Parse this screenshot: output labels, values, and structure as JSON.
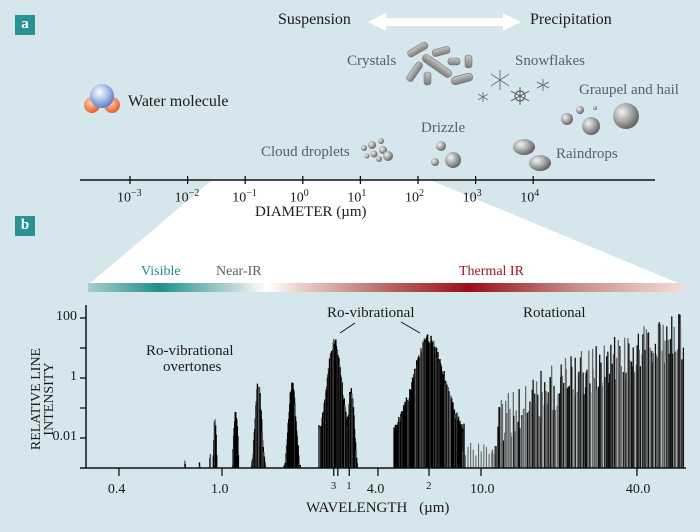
{
  "panel_a": {
    "label": "a",
    "suspension_label": "Suspension",
    "precipitation_label": "Precipitation",
    "particles": [
      {
        "name": "water-molecule",
        "label": "Water molecule"
      },
      {
        "name": "cloud-droplets",
        "label": "Cloud droplets"
      },
      {
        "name": "drizzle",
        "label": "Drizzle"
      },
      {
        "name": "crystals",
        "label": "Crystals"
      },
      {
        "name": "snowflakes",
        "label": "Snowflakes"
      },
      {
        "name": "graupel-and-hail",
        "label": "Graupel and hail"
      },
      {
        "name": "raindrops",
        "label": "Raindrops"
      }
    ],
    "axis": {
      "label": "DIAMETER (µm)",
      "ticks": [
        {
          "base": "10",
          "exp": "−3"
        },
        {
          "base": "10",
          "exp": "−2"
        },
        {
          "base": "10",
          "exp": "−1"
        },
        {
          "base": "10",
          "exp": "0"
        },
        {
          "base": "10",
          "exp": "1"
        },
        {
          "base": "10",
          "exp": "2"
        },
        {
          "base": "10",
          "exp": "3"
        },
        {
          "base": "10",
          "exp": "4"
        }
      ]
    }
  },
  "panel_b": {
    "label": "b",
    "bands": {
      "visible": "Visible",
      "near_ir": "Near-IR",
      "thermal_ir": "Thermal IR"
    },
    "colors": {
      "visible": "#1e8f8c",
      "near_ir": "#6a6a6a",
      "thermal_ir": "#a0141e",
      "panel_badge": "#2a9294",
      "background": "#d5e6ec"
    },
    "annotations": {
      "overtones_line1": "Ro-vibrational",
      "overtones_line2": "overtones",
      "rovibrational": "Ro-vibrational",
      "rotational": "Rotational"
    }
  },
  "chart_data": {
    "type": "bar",
    "title": "",
    "xlabel": "WAVELENGTH (µm)",
    "ylabel": "RELATIVE LINE INTENSITY",
    "xscale": "log",
    "yscale": "log",
    "xlim": [
      0.3,
      70
    ],
    "ylim": [
      0.001,
      300
    ],
    "x_ticks": [
      {
        "value": 0.4,
        "label": "0.4"
      },
      {
        "value": 1.0,
        "label": "1.0"
      },
      {
        "value": 2.7,
        "label": "3"
      },
      {
        "value": 2.8,
        "label": ""
      },
      {
        "value": 3.1,
        "label": "1"
      },
      {
        "value": 4.0,
        "label": "4.0"
      },
      {
        "value": 6.3,
        "label": "2"
      },
      {
        "value": 10.0,
        "label": "10.0"
      },
      {
        "value": 40.0,
        "label": "40.0"
      }
    ],
    "y_ticks": [
      {
        "value": 100,
        "label": "100"
      },
      {
        "value": 10,
        "label": ""
      },
      {
        "value": 1,
        "label": "1"
      },
      {
        "value": 0.1,
        "label": ""
      },
      {
        "value": 0.01,
        "label": "0.01"
      }
    ],
    "series": [
      {
        "name": "Ro-vibrational overtones",
        "bands": [
          {
            "center_um": 0.72,
            "peak": 0.004
          },
          {
            "center_um": 0.82,
            "peak": 0.004
          },
          {
            "center_um": 0.9,
            "peak": 0.007
          },
          {
            "center_um": 0.94,
            "peak": 0.06
          },
          {
            "center_um": 1.13,
            "peak": 0.11
          },
          {
            "center_um": 1.38,
            "peak": 0.9
          },
          {
            "center_um": 1.87,
            "peak": 1.1
          }
        ]
      },
      {
        "name": "Ro-vibrational",
        "bands": [
          {
            "center_um": 2.7,
            "peak": 25
          },
          {
            "center_um": 3.2,
            "peak": 0.6
          },
          {
            "center_um": 6.3,
            "peak": 30
          }
        ]
      },
      {
        "name": "Rotational",
        "range_um": [
          11,
          65
        ],
        "peak": 200
      }
    ]
  }
}
